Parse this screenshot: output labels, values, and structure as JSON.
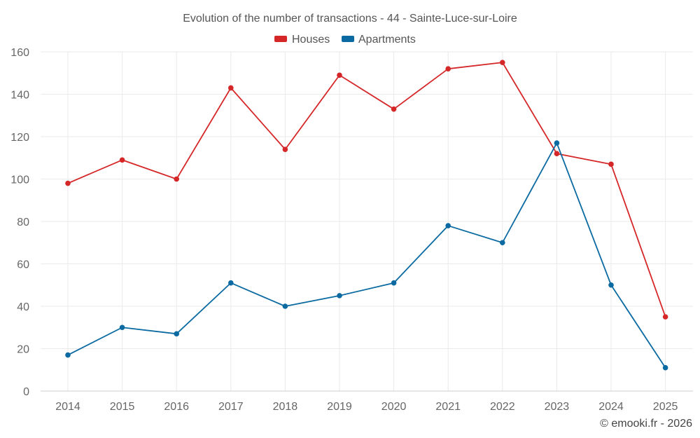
{
  "chart_data": {
    "type": "line",
    "title": "Evolution of the number of transactions - 44 - Sainte-Luce-sur-Loire",
    "categories": [
      "2014",
      "2015",
      "2016",
      "2017",
      "2018",
      "2019",
      "2020",
      "2021",
      "2022",
      "2023",
      "2024",
      "2025"
    ],
    "series": [
      {
        "name": "Houses",
        "color": "#d62728",
        "values": [
          98,
          109,
          100,
          143,
          114,
          149,
          133,
          152,
          155,
          112,
          107,
          35
        ]
      },
      {
        "name": "Apartments",
        "color": "#0a6aa1",
        "values": [
          17,
          30,
          27,
          51,
          40,
          45,
          51,
          78,
          70,
          117,
          50,
          11
        ]
      }
    ],
    "ylim": [
      0,
      160
    ],
    "yticks": [
      "0",
      "20",
      "40",
      "60",
      "80",
      "100",
      "120",
      "140",
      "160"
    ],
    "xlabel": "",
    "ylabel": "",
    "grid": true,
    "legend": "top-center"
  },
  "footer": {
    "copyright": "© emooki.fr - 2026"
  }
}
